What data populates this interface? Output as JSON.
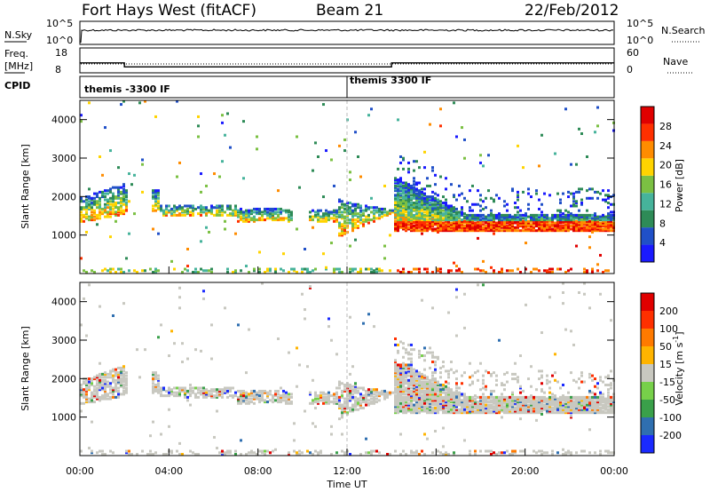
{
  "header": {
    "title": "Fort Hays West (fitACF)",
    "beam": "Beam 21",
    "date": "22/Feb/2012"
  },
  "top_panels": {
    "nsky_label": "N.Sky",
    "nsky_ticks": [
      "10^5",
      "10^0"
    ],
    "nsearch_label": "N.Search",
    "nsearch_ticks": [
      "10^5",
      "10^0"
    ],
    "freq_label_line1": "Freq.",
    "freq_label_line2": "[MHz]",
    "freq_ticks": [
      "18",
      "8"
    ],
    "nave_label": "Nave",
    "nave_ticks": [
      "60",
      "0"
    ],
    "cpid_label": "CPID",
    "cpid_segments": [
      {
        "label": "themis -3300 IF",
        "start_hour": 0,
        "end_hour": 12
      },
      {
        "label": "themis 3300 IF",
        "start_hour": 12,
        "end_hour": 24
      }
    ],
    "freq_steps": [
      {
        "start_hour": 0,
        "end_hour": 2,
        "mhz": 12
      },
      {
        "start_hour": 2,
        "end_hour": 14,
        "mhz": 10.4
      },
      {
        "start_hour": 14,
        "end_hour": 24,
        "mhz": 12
      }
    ]
  },
  "chart_data": [
    {
      "type": "heatmap",
      "name": "power",
      "ylabel": "Slant Range [km]",
      "ylim": [
        0,
        4500
      ],
      "yticks": [
        "1000",
        "2000",
        "3000",
        "4000"
      ],
      "colorbar_label": "Power [dB]",
      "colorbar_ticks": [
        "4",
        "8",
        "12",
        "16",
        "20",
        "24",
        "28"
      ],
      "colorbar_range": [
        0,
        30
      ],
      "colors": [
        "#1a1aff",
        "#2050c8",
        "#2e8b57",
        "#46b39b",
        "#7bc043",
        "#ffd400",
        "#ff8c00",
        "#ff3000",
        "#e00000"
      ]
    },
    {
      "type": "heatmap",
      "name": "velocity",
      "ylabel": "Slant Range [km]",
      "ylim": [
        0,
        4500
      ],
      "yticks": [
        "1000",
        "2000",
        "3000",
        "4000"
      ],
      "xlabel": "Time UT",
      "xticks": [
        "00:00",
        "04:00",
        "08:00",
        "12:00",
        "16:00",
        "20:00",
        "00:00"
      ],
      "xlim_hours": [
        0,
        24
      ],
      "colorbar_label": "Velocity [m s",
      "colorbar_label_sup": "-1",
      "colorbar_label_end": "]",
      "colorbar_ticks": [
        "200",
        "100",
        "50",
        "15",
        "-15",
        "-50",
        "-100",
        "-200"
      ],
      "colors": [
        "#1a2aff",
        "#2f6fb0",
        "#3aa04a",
        "#77d04a",
        "#c8c8c0",
        "#ffb400",
        "#ff7a00",
        "#ff3000",
        "#e00000"
      ]
    }
  ]
}
